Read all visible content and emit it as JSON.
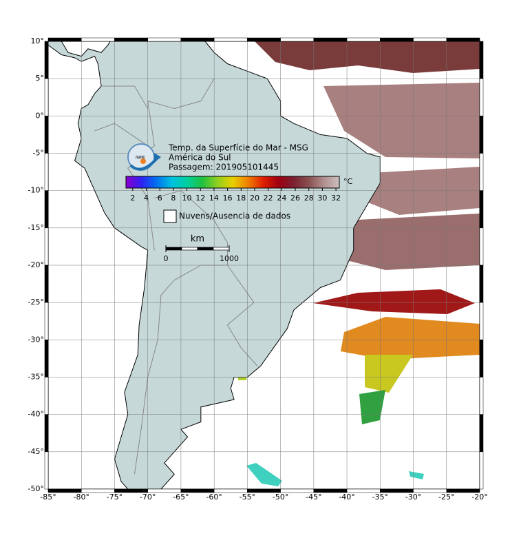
{
  "map": {
    "title": [
      "Temp. da Superfície do Mar - MSG",
      "América do Sul",
      "Passagem: 201905101445"
    ],
    "logo_text": "INPE",
    "colorbar": {
      "ticks": [
        2,
        4,
        6,
        8,
        10,
        12,
        14,
        16,
        18,
        20,
        22,
        24,
        26,
        28,
        30,
        32
      ],
      "lim": [
        1,
        32.5
      ],
      "unit": "°C",
      "colors": [
        "#8a00d0",
        "#3020f0",
        "#0070f0",
        "#00c0e0",
        "#00d0a0",
        "#20c040",
        "#90d020",
        "#e8d000",
        "#f08000",
        "#e02000",
        "#a00010",
        "#7a2030",
        "#8a5050",
        "#b09090",
        "#d0c0c0"
      ]
    },
    "legend": "Nuvens/Ausencia de dados",
    "scale": {
      "unit": "km",
      "ticks": [
        0,
        1000
      ]
    },
    "xlim": [
      -85,
      -20
    ],
    "ylim": [
      -50,
      10
    ],
    "xticks": [
      {
        "value": -85,
        "label": "-85°"
      },
      {
        "value": -80,
        "label": "-80°"
      },
      {
        "value": -75,
        "label": "-75°"
      },
      {
        "value": -70,
        "label": "-70°"
      },
      {
        "value": -65,
        "label": "-65°"
      },
      {
        "value": -60,
        "label": "-60°"
      },
      {
        "value": -55,
        "label": "-55°"
      },
      {
        "value": -50,
        "label": "-50°"
      },
      {
        "value": -45,
        "label": "-45°"
      },
      {
        "value": -40,
        "label": "-40°"
      },
      {
        "value": -35,
        "label": "-35°"
      },
      {
        "value": -30,
        "label": "-30°"
      },
      {
        "value": -25,
        "label": "-25°"
      },
      {
        "value": -20,
        "label": "-20°"
      }
    ],
    "yticks": [
      {
        "value": 10,
        "label": "10°"
      },
      {
        "value": 5,
        "label": "5°"
      },
      {
        "value": 0,
        "label": "0°"
      },
      {
        "value": -5,
        "label": "-5°"
      },
      {
        "value": -10,
        "label": "-10°"
      },
      {
        "value": -15,
        "label": "-15°"
      },
      {
        "value": -20,
        "label": "-20°"
      },
      {
        "value": -25,
        "label": "-25°"
      },
      {
        "value": -30,
        "label": "-30°"
      },
      {
        "value": -35,
        "label": "-35°"
      },
      {
        "value": -40,
        "label": "-40°"
      },
      {
        "value": -45,
        "label": "-45°"
      },
      {
        "value": -50,
        "label": "-50°"
      }
    ]
  }
}
